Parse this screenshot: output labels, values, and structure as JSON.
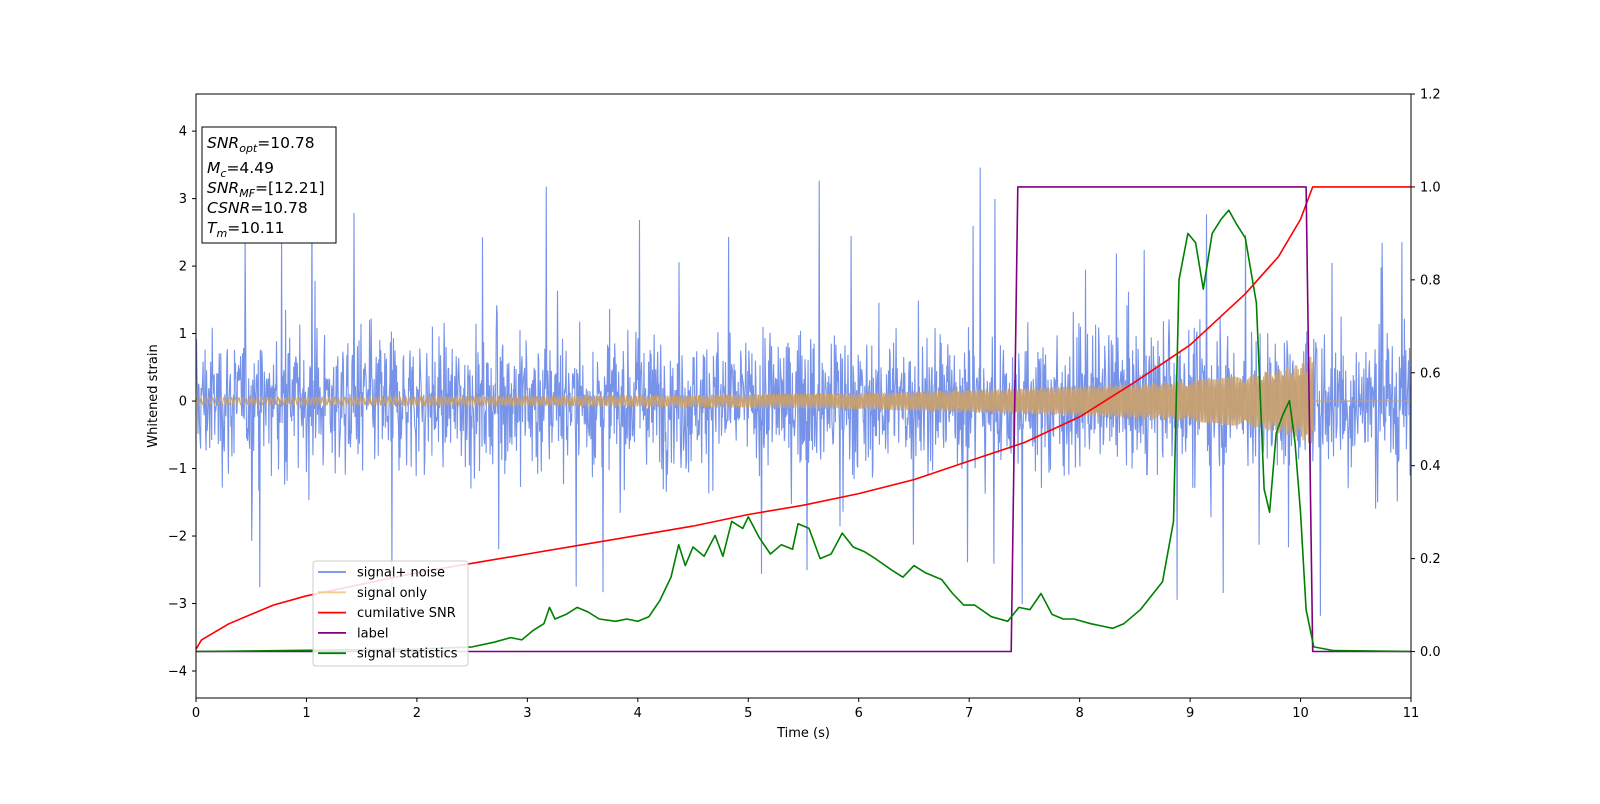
{
  "chart_data": {
    "type": "line",
    "xlabel": "Time (s)",
    "ylabel_left": "Whitened strain",
    "xlim": [
      0,
      11
    ],
    "ylim_left": [
      -4.4,
      4.55
    ],
    "ylim_right": [
      -0.1,
      1.2
    ],
    "x_ticks": [
      "0",
      "1",
      "2",
      "3",
      "4",
      "5",
      "6",
      "7",
      "8",
      "9",
      "10",
      "11"
    ],
    "y_left_ticks": [
      {
        "v": 4,
        "label": "4"
      },
      {
        "v": 3,
        "label": "3"
      },
      {
        "v": 2,
        "label": "2"
      },
      {
        "v": 1,
        "label": "1"
      },
      {
        "v": 0,
        "label": "0"
      },
      {
        "v": -1,
        "label": "−1"
      },
      {
        "v": -2,
        "label": "−2"
      },
      {
        "v": -3,
        "label": "−3"
      },
      {
        "v": -4,
        "label": "−4"
      }
    ],
    "y_right_ticks": [
      {
        "v": 1.2,
        "label": "1.2"
      },
      {
        "v": 1.0,
        "label": "1.0"
      },
      {
        "v": 0.8,
        "label": "0.8"
      },
      {
        "v": 0.6,
        "label": "0.6"
      },
      {
        "v": 0.4,
        "label": "0.4"
      },
      {
        "v": 0.2,
        "label": "0.2"
      },
      {
        "v": 0.0,
        "label": "0.0"
      }
    ],
    "legend": {
      "placement": "lower-left",
      "entries": [
        {
          "label": "signal+ noise",
          "color": "#6f8de8"
        },
        {
          "label": "signal only",
          "color": "#f7c98a"
        },
        {
          "label": "cumilative SNR",
          "color": "#ff0000"
        },
        {
          "label": "label",
          "color": "#800080"
        },
        {
          "label": "signal statistics",
          "color": "#008000"
        }
      ]
    },
    "annotation": {
      "lines": [
        {
          "base": "SNR",
          "sub": "opt",
          "value": "=10.78"
        },
        {
          "base": "M",
          "sub": "c",
          "value": "=4.49"
        },
        {
          "base": "SNR",
          "sub": "MF",
          "value": "=[12.21]"
        },
        {
          "base": "CSNR",
          "sub": "",
          "value": "=10.78"
        },
        {
          "base": "T",
          "sub": "m",
          "value": "=10.11"
        }
      ]
    },
    "series": [
      {
        "name": "signal+ noise",
        "axis": "left",
        "color": "#6f8de8",
        "kind": "noise",
        "x_range": [
          0,
          11
        ],
        "typical_band": [
          -1.9,
          1.9
        ],
        "peak_range": [
          -3.9,
          4.2
        ]
      },
      {
        "name": "signal only",
        "axis": "left",
        "color": "#c8a070",
        "kind": "chirp",
        "x_range": [
          0,
          10.11
        ],
        "envelope": [
          [
            0,
            0.05
          ],
          [
            2,
            0.06
          ],
          [
            4,
            0.08
          ],
          [
            6,
            0.12
          ],
          [
            8,
            0.22
          ],
          [
            9,
            0.3
          ],
          [
            9.6,
            0.4
          ],
          [
            10.0,
            0.55
          ],
          [
            10.11,
            0.7
          ]
        ]
      },
      {
        "name": "cumilative SNR",
        "axis": "right",
        "color": "#ff0000",
        "points": [
          [
            0,
            0.005
          ],
          [
            0.05,
            0.025
          ],
          [
            0.3,
            0.06
          ],
          [
            0.7,
            0.1
          ],
          [
            1.0,
            0.12
          ],
          [
            1.5,
            0.145
          ],
          [
            2.0,
            0.17
          ],
          [
            2.5,
            0.19
          ],
          [
            3.0,
            0.21
          ],
          [
            3.5,
            0.23
          ],
          [
            4.0,
            0.25
          ],
          [
            4.5,
            0.27
          ],
          [
            5.0,
            0.295
          ],
          [
            5.5,
            0.315
          ],
          [
            6.0,
            0.34
          ],
          [
            6.5,
            0.37
          ],
          [
            7.0,
            0.41
          ],
          [
            7.5,
            0.45
          ],
          [
            8.0,
            0.505
          ],
          [
            8.5,
            0.58
          ],
          [
            9.0,
            0.66
          ],
          [
            9.5,
            0.77
          ],
          [
            9.8,
            0.85
          ],
          [
            10.0,
            0.93
          ],
          [
            10.11,
            1.0
          ],
          [
            11,
            1.0
          ]
        ]
      },
      {
        "name": "label",
        "axis": "right",
        "color": "#800080",
        "points": [
          [
            0,
            0
          ],
          [
            7.38,
            0
          ],
          [
            7.44,
            1
          ],
          [
            10.05,
            1
          ],
          [
            10.11,
            0
          ],
          [
            11,
            0
          ]
        ]
      },
      {
        "name": "signal statistics",
        "axis": "right",
        "color": "#008000",
        "points": [
          [
            0,
            0
          ],
          [
            0.8,
            0.002
          ],
          [
            1.5,
            0.004
          ],
          [
            2.0,
            0.005
          ],
          [
            2.5,
            0.01
          ],
          [
            2.7,
            0.02
          ],
          [
            2.85,
            0.03
          ],
          [
            2.95,
            0.025
          ],
          [
            3.05,
            0.045
          ],
          [
            3.15,
            0.06
          ],
          [
            3.2,
            0.095
          ],
          [
            3.25,
            0.07
          ],
          [
            3.35,
            0.08
          ],
          [
            3.45,
            0.095
          ],
          [
            3.55,
            0.085
          ],
          [
            3.65,
            0.07
          ],
          [
            3.8,
            0.065
          ],
          [
            3.9,
            0.07
          ],
          [
            4.0,
            0.065
          ],
          [
            4.1,
            0.075
          ],
          [
            4.2,
            0.11
          ],
          [
            4.3,
            0.16
          ],
          [
            4.37,
            0.23
          ],
          [
            4.43,
            0.185
          ],
          [
            4.5,
            0.225
          ],
          [
            4.6,
            0.205
          ],
          [
            4.7,
            0.25
          ],
          [
            4.77,
            0.205
          ],
          [
            4.85,
            0.28
          ],
          [
            4.95,
            0.265
          ],
          [
            5.0,
            0.29
          ],
          [
            5.1,
            0.245
          ],
          [
            5.2,
            0.21
          ],
          [
            5.3,
            0.23
          ],
          [
            5.4,
            0.22
          ],
          [
            5.45,
            0.275
          ],
          [
            5.55,
            0.265
          ],
          [
            5.65,
            0.2
          ],
          [
            5.75,
            0.21
          ],
          [
            5.85,
            0.255
          ],
          [
            5.95,
            0.225
          ],
          [
            6.05,
            0.215
          ],
          [
            6.15,
            0.2
          ],
          [
            6.3,
            0.175
          ],
          [
            6.4,
            0.16
          ],
          [
            6.5,
            0.185
          ],
          [
            6.6,
            0.17
          ],
          [
            6.75,
            0.155
          ],
          [
            6.85,
            0.125
          ],
          [
            6.95,
            0.1
          ],
          [
            7.05,
            0.1
          ],
          [
            7.2,
            0.075
          ],
          [
            7.35,
            0.065
          ],
          [
            7.45,
            0.095
          ],
          [
            7.55,
            0.09
          ],
          [
            7.65,
            0.125
          ],
          [
            7.75,
            0.08
          ],
          [
            7.85,
            0.07
          ],
          [
            7.95,
            0.07
          ],
          [
            8.1,
            0.06
          ],
          [
            8.2,
            0.055
          ],
          [
            8.3,
            0.05
          ],
          [
            8.4,
            0.06
          ],
          [
            8.55,
            0.09
          ],
          [
            8.65,
            0.12
          ],
          [
            8.75,
            0.15
          ],
          [
            8.85,
            0.28
          ],
          [
            8.9,
            0.8
          ],
          [
            8.98,
            0.9
          ],
          [
            9.05,
            0.88
          ],
          [
            9.12,
            0.78
          ],
          [
            9.2,
            0.9
          ],
          [
            9.28,
            0.93
          ],
          [
            9.35,
            0.95
          ],
          [
            9.42,
            0.92
          ],
          [
            9.5,
            0.89
          ],
          [
            9.6,
            0.75
          ],
          [
            9.67,
            0.35
          ],
          [
            9.72,
            0.3
          ],
          [
            9.78,
            0.47
          ],
          [
            9.84,
            0.51
          ],
          [
            9.9,
            0.54
          ],
          [
            9.95,
            0.45
          ],
          [
            10.0,
            0.3
          ],
          [
            10.05,
            0.09
          ],
          [
            10.12,
            0.01
          ],
          [
            10.3,
            0.002
          ],
          [
            11,
            0
          ]
        ]
      }
    ],
    "grid": false
  }
}
